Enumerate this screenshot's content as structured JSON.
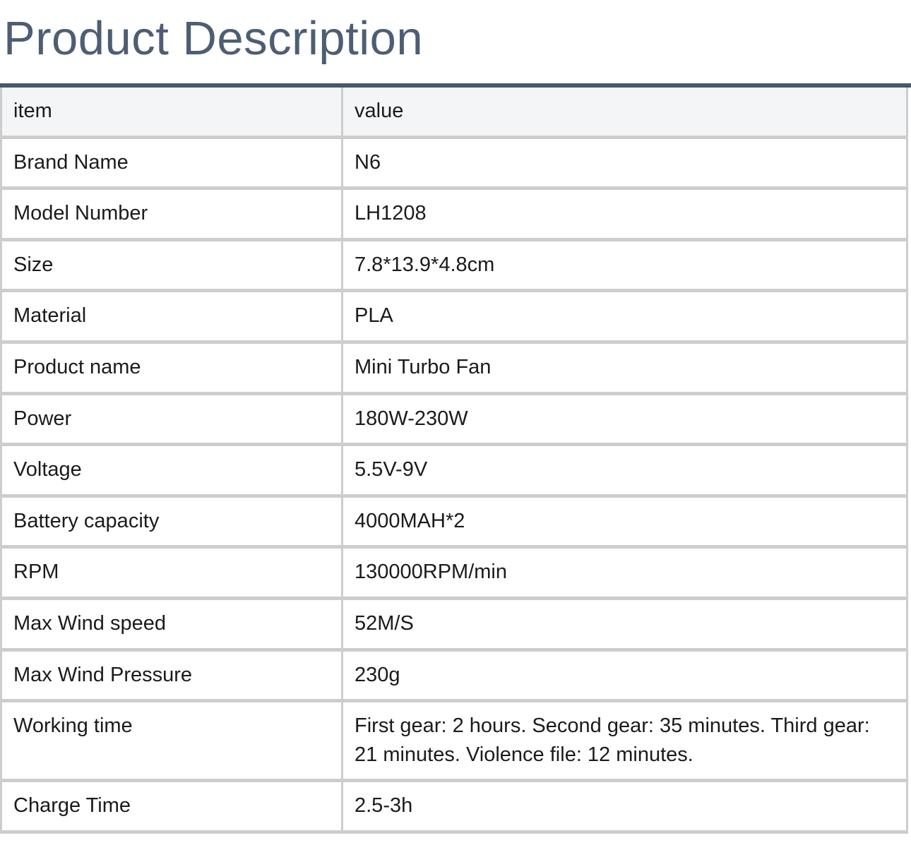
{
  "page": {
    "title": "Product Description"
  },
  "colors": {
    "title_text": "#4d5e74",
    "top_rule": "#48586c",
    "table_border": "#cdcdcd",
    "header_background": "#f4f5f7",
    "cell_background": "#ffffff",
    "body_text": "#1b1b1d"
  },
  "table": {
    "columns": [
      "item",
      "value"
    ],
    "rows": [
      [
        "Brand Name",
        "N6"
      ],
      [
        "Model Number",
        "LH1208"
      ],
      [
        "Size",
        "7.8*13.9*4.8cm"
      ],
      [
        "Material",
        "PLA"
      ],
      [
        "Product name",
        "Mini Turbo Fan"
      ],
      [
        "Power",
        "180W-230W"
      ],
      [
        "Voltage",
        "5.5V-9V"
      ],
      [
        "Battery capacity",
        "4000MAH*2"
      ],
      [
        "RPM",
        "130000RPM/min"
      ],
      [
        "Max Wind speed",
        "52M/S"
      ],
      [
        "Max Wind Pressure",
        "230g"
      ],
      [
        "Working time",
        "First gear: 2 hours. Second gear: 35 minutes. Third gear: 21 minutes. Violence file: 12 minutes."
      ],
      [
        "Charge Time",
        "2.5-3h"
      ]
    ]
  }
}
